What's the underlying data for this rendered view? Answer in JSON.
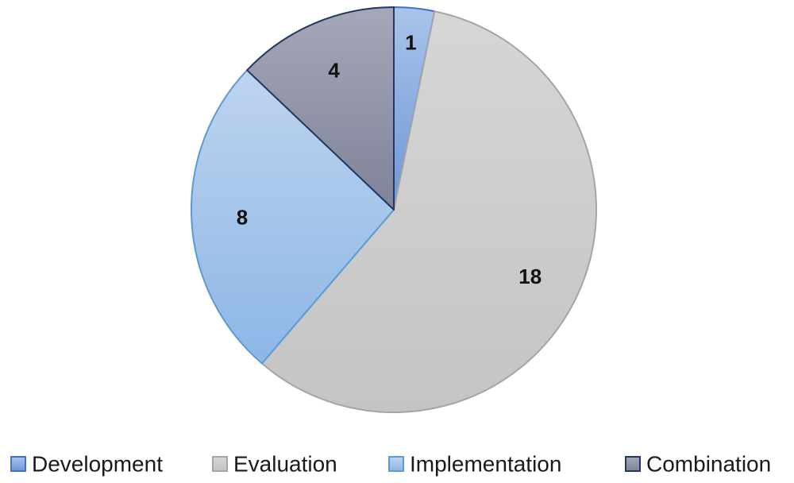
{
  "chart_data": {
    "type": "pie",
    "categories": [
      "Development",
      "Evaluation",
      "Implementation",
      "Combination"
    ],
    "values": [
      1,
      18,
      8,
      4
    ],
    "data_labels": [
      "1",
      "18",
      "8",
      "4"
    ],
    "colors": {
      "Development": {
        "top": "#a9c4ea",
        "bottom": "#6d95d6",
        "stroke": "#4472c4"
      },
      "Evaluation": {
        "top": "#d6d6d6",
        "bottom": "#c4c4c4",
        "stroke": "#a5a5a5"
      },
      "Implementation": {
        "top": "#bdd4ee",
        "bottom": "#8db6e6",
        "stroke": "#5b9bd5"
      },
      "Combination": {
        "top": "#a6a8b8",
        "bottom": "#7f8299",
        "stroke": "#1f3864"
      }
    },
    "start_angle_deg": 0,
    "direction": "clockwise",
    "legend_position": "bottom",
    "title": "",
    "grid": false
  }
}
